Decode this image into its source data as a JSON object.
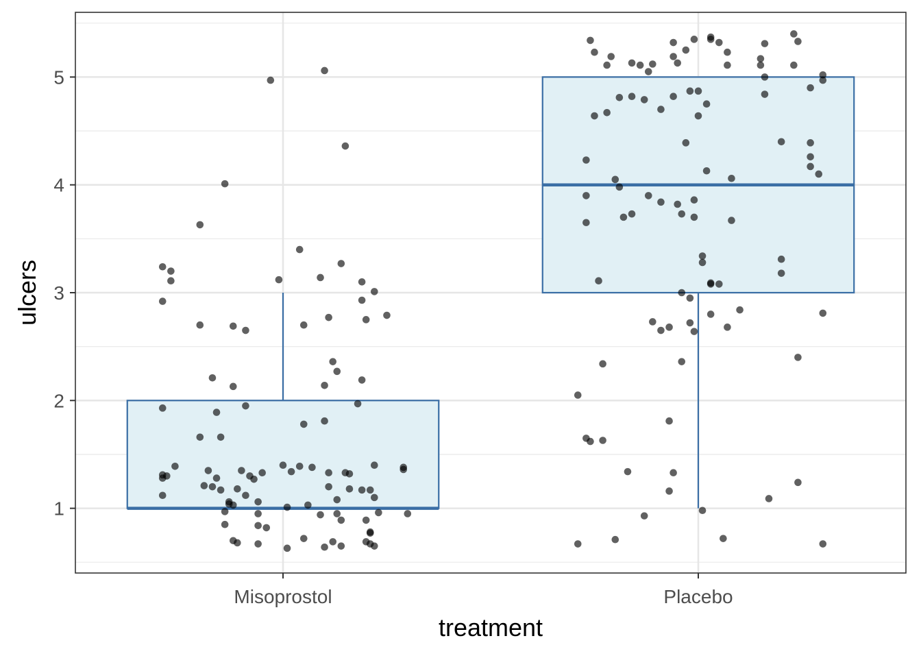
{
  "chart_data": {
    "type": "box",
    "xlabel": "treatment",
    "ylabel": "ulcers",
    "categories": [
      "Misoprostol",
      "Placebo"
    ],
    "ylim": [
      0.4,
      5.6
    ],
    "yticks": [
      1,
      2,
      3,
      4,
      5
    ],
    "grid": true,
    "boxes": [
      {
        "category": "Misoprostol",
        "whisker_low": 1,
        "q1": 1,
        "median": 1,
        "q3": 2,
        "whisker_high": 3
      },
      {
        "category": "Placebo",
        "whisker_low": 1,
        "q1": 3,
        "median": 4,
        "q3": 5,
        "whisker_high": 5
      }
    ],
    "points": [
      {
        "category": "Misoprostol",
        "value": 1,
        "jitter": [
          [
            -0.29,
            1.12
          ],
          [
            -0.29,
            1.28
          ],
          [
            -0.29,
            1.31
          ],
          [
            -0.28,
            1.3
          ],
          [
            -0.26,
            1.39
          ],
          [
            -0.19,
            1.21
          ],
          [
            -0.18,
            1.35
          ],
          [
            -0.17,
            1.2
          ],
          [
            -0.16,
            1.28
          ],
          [
            -0.15,
            1.17
          ],
          [
            -0.14,
            0.97
          ],
          [
            -0.14,
            0.85
          ],
          [
            -0.13,
            1.06
          ],
          [
            -0.13,
            1.04
          ],
          [
            -0.12,
            1.03
          ],
          [
            -0.12,
            0.7
          ],
          [
            -0.11,
            0.68
          ],
          [
            -0.11,
            1.18
          ],
          [
            -0.1,
            1.35
          ],
          [
            -0.09,
            1.12
          ],
          [
            -0.08,
            1.3
          ],
          [
            -0.07,
            1.27
          ],
          [
            -0.06,
            1.06
          ],
          [
            -0.06,
            0.95
          ],
          [
            -0.06,
            0.84
          ],
          [
            -0.05,
            1.33
          ],
          [
            -0.04,
            0.82
          ],
          [
            -0.06,
            0.67
          ],
          [
            0.0,
            1.4
          ],
          [
            0.01,
            1.01
          ],
          [
            0.01,
            0.63
          ],
          [
            0.02,
            1.34
          ],
          [
            0.04,
            1.39
          ],
          [
            0.05,
            0.72
          ],
          [
            0.06,
            1.03
          ],
          [
            0.07,
            1.38
          ],
          [
            0.09,
            0.94
          ],
          [
            0.1,
            0.64
          ],
          [
            0.11,
            1.2
          ],
          [
            0.11,
            1.33
          ],
          [
            0.12,
            0.69
          ],
          [
            0.13,
            1.08
          ],
          [
            0.13,
            0.95
          ],
          [
            0.14,
            0.89
          ],
          [
            0.14,
            0.65
          ],
          [
            0.16,
            1.18
          ],
          [
            0.15,
            1.33
          ],
          [
            0.16,
            1.32
          ],
          [
            0.19,
            1.17
          ],
          [
            0.2,
            0.69
          ],
          [
            0.2,
            0.89
          ],
          [
            0.21,
            0.77
          ],
          [
            0.21,
            1.17
          ],
          [
            0.21,
            0.78
          ],
          [
            0.21,
            0.67
          ],
          [
            0.22,
            1.1
          ],
          [
            0.22,
            1.4
          ],
          [
            0.22,
            0.65
          ],
          [
            0.23,
            0.96
          ],
          [
            0.29,
            1.38
          ],
          [
            0.29,
            1.36
          ],
          [
            0.3,
            0.95
          ]
        ]
      },
      {
        "category": "Misoprostol",
        "value": 2,
        "jitter": [
          [
            -0.29,
            1.93
          ],
          [
            -0.2,
            1.66
          ],
          [
            -0.17,
            2.21
          ],
          [
            -0.16,
            1.89
          ],
          [
            -0.15,
            1.66
          ],
          [
            -0.12,
            2.13
          ],
          [
            -0.09,
            1.95
          ],
          [
            0.05,
            1.78
          ],
          [
            0.1,
            2.14
          ],
          [
            0.1,
            1.81
          ],
          [
            0.12,
            2.36
          ],
          [
            0.13,
            2.27
          ],
          [
            0.18,
            1.97
          ],
          [
            0.19,
            2.19
          ]
        ]
      },
      {
        "category": "Misoprostol",
        "value": 3,
        "jitter": [
          [
            -0.29,
            3.24
          ],
          [
            -0.29,
            2.92
          ],
          [
            -0.27,
            3.11
          ],
          [
            -0.27,
            3.2
          ],
          [
            -0.2,
            2.7
          ],
          [
            -0.2,
            3.63
          ],
          [
            -0.12,
            2.69
          ],
          [
            -0.09,
            2.65
          ],
          [
            -0.01,
            3.12
          ],
          [
            0.04,
            3.4
          ],
          [
            0.05,
            2.7
          ],
          [
            0.09,
            3.14
          ],
          [
            0.11,
            2.77
          ],
          [
            0.14,
            3.27
          ],
          [
            0.19,
            3.1
          ],
          [
            0.19,
            2.93
          ],
          [
            0.2,
            2.75
          ],
          [
            0.22,
            3.01
          ],
          [
            0.25,
            2.79
          ]
        ]
      },
      {
        "category": "Misoprostol",
        "value": 4,
        "jitter": [
          [
            -0.14,
            4.01
          ],
          [
            -0.03,
            4.97
          ],
          [
            0.1,
            5.06
          ],
          [
            0.15,
            4.36
          ]
        ]
      },
      {
        "category": "Placebo",
        "value": 1,
        "jitter": [
          [
            -0.29,
            0.67
          ],
          [
            -0.27,
            1.65
          ],
          [
            -0.26,
            1.62
          ],
          [
            -0.23,
            1.63
          ],
          [
            -0.2,
            0.71
          ],
          [
            -0.17,
            1.34
          ],
          [
            -0.13,
            0.93
          ],
          [
            -0.07,
            1.16
          ],
          [
            -0.06,
            1.33
          ],
          [
            -0.07,
            1.81
          ],
          [
            0.01,
            0.98
          ],
          [
            0.06,
            0.72
          ],
          [
            0.17,
            1.09
          ],
          [
            0.24,
            1.24
          ],
          [
            0.3,
            0.67
          ]
        ]
      },
      {
        "category": "Placebo",
        "value": 2,
        "jitter": [
          [
            -0.29,
            2.05
          ],
          [
            -0.23,
            2.34
          ],
          [
            -0.11,
            2.73
          ],
          [
            -0.09,
            2.65
          ],
          [
            -0.07,
            2.68
          ],
          [
            -0.04,
            2.36
          ],
          [
            -0.04,
            3.0
          ],
          [
            -0.02,
            2.72
          ],
          [
            -0.02,
            2.95
          ],
          [
            -0.01,
            2.64
          ],
          [
            0.03,
            2.8
          ],
          [
            0.05,
            3.08
          ],
          [
            0.07,
            2.68
          ],
          [
            0.1,
            2.84
          ],
          [
            0.24,
            2.4
          ],
          [
            0.3,
            2.81
          ]
        ]
      },
      {
        "category": "Placebo",
        "value": 4,
        "jitter": [
          [
            -0.27,
            4.23
          ],
          [
            -0.27,
            3.9
          ],
          [
            -0.27,
            3.65
          ],
          [
            -0.25,
            4.64
          ],
          [
            -0.24,
            3.11
          ],
          [
            -0.22,
            4.67
          ],
          [
            -0.2,
            4.05
          ],
          [
            -0.19,
            3.98
          ],
          [
            -0.19,
            4.81
          ],
          [
            -0.18,
            3.7
          ],
          [
            -0.16,
            3.73
          ],
          [
            -0.16,
            4.82
          ],
          [
            -0.13,
            4.79
          ],
          [
            -0.12,
            3.9
          ],
          [
            -0.09,
            4.7
          ],
          [
            -0.09,
            3.84
          ],
          [
            -0.06,
            4.82
          ],
          [
            -0.05,
            3.82
          ],
          [
            -0.04,
            3.73
          ],
          [
            -0.03,
            4.39
          ],
          [
            -0.02,
            4.87
          ],
          [
            -0.01,
            3.86
          ],
          [
            -0.01,
            3.7
          ],
          [
            0.0,
            4.64
          ],
          [
            0.0,
            4.87
          ],
          [
            0.01,
            3.34
          ],
          [
            0.01,
            3.28
          ],
          [
            0.02,
            4.75
          ],
          [
            0.02,
            4.13
          ],
          [
            0.03,
            3.09
          ],
          [
            0.03,
            3.08
          ],
          [
            0.08,
            3.67
          ],
          [
            0.08,
            4.06
          ],
          [
            0.2,
            4.4
          ],
          [
            0.2,
            3.31
          ],
          [
            0.2,
            3.18
          ],
          [
            0.27,
            4.39
          ],
          [
            0.27,
            4.26
          ],
          [
            0.27,
            4.9
          ],
          [
            0.27,
            4.17
          ],
          [
            0.29,
            4.1
          ],
          [
            0.3,
            4.97
          ]
        ]
      },
      {
        "category": "Placebo",
        "value": 5,
        "jitter": [
          [
            -0.26,
            5.34
          ],
          [
            -0.25,
            5.23
          ],
          [
            -0.21,
            5.19
          ],
          [
            -0.22,
            5.11
          ],
          [
            -0.16,
            5.13
          ],
          [
            -0.14,
            5.11
          ],
          [
            -0.12,
            5.05
          ],
          [
            -0.11,
            5.12
          ],
          [
            -0.06,
            5.32
          ],
          [
            -0.06,
            5.19
          ],
          [
            -0.05,
            5.13
          ],
          [
            -0.03,
            5.25
          ],
          [
            -0.01,
            5.35
          ],
          [
            0.03,
            5.37
          ],
          [
            0.03,
            5.35
          ],
          [
            0.05,
            5.32
          ],
          [
            0.07,
            5.23
          ],
          [
            0.07,
            5.11
          ],
          [
            0.15,
            5.17
          ],
          [
            0.15,
            5.11
          ],
          [
            0.16,
            5.31
          ],
          [
            0.16,
            5.0
          ],
          [
            0.16,
            4.84
          ],
          [
            0.23,
            5.11
          ],
          [
            0.23,
            5.4
          ],
          [
            0.24,
            5.33
          ],
          [
            0.3,
            5.02
          ]
        ]
      }
    ]
  }
}
